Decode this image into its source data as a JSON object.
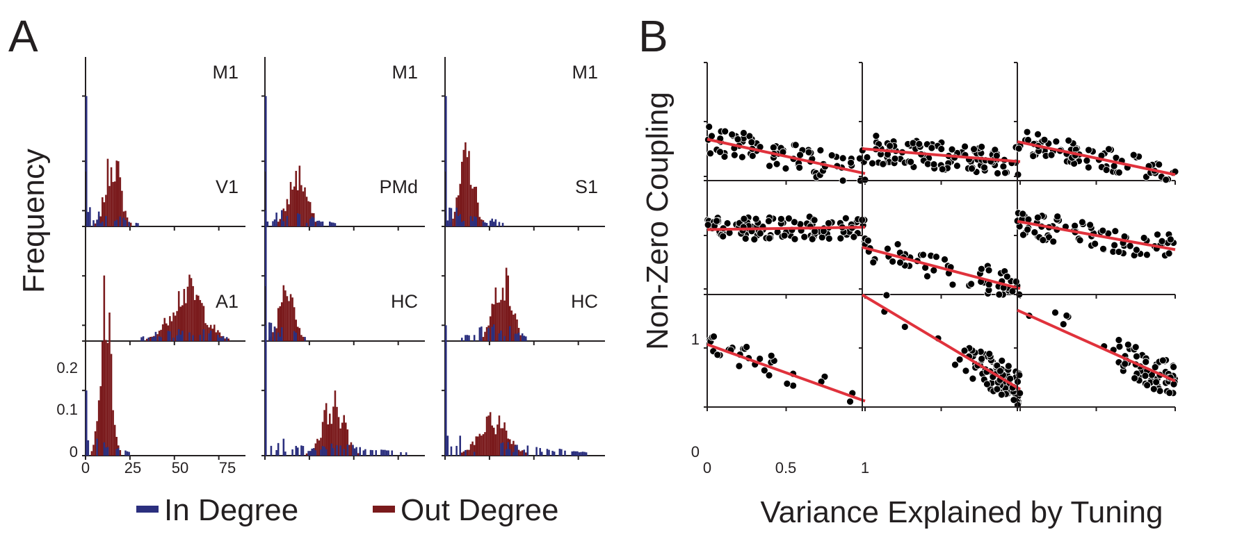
{
  "panel_labels": {
    "a": "A",
    "b": "B"
  },
  "colors": {
    "in_degree": "#2b2f7e",
    "out_degree": "#7a1a1c",
    "fit": "#e0323c",
    "points": "#000000"
  },
  "panel_a": {
    "ylabel": "Frequency",
    "xticks": [
      "0",
      "25",
      "50",
      "75"
    ],
    "yticks": [
      "0",
      "0.1",
      "0.2"
    ],
    "legend": {
      "in": "In Degree",
      "out": "Out Degree"
    }
  },
  "panel_b": {
    "ylabel": "Non-Zero Coupling",
    "xlabel": "Variance Explained by Tuning",
    "xticks": [
      "0",
      "0.5",
      "1"
    ],
    "yticks": [
      "0",
      "1"
    ]
  },
  "chart_data": [
    {
      "type": "bar",
      "name": "A",
      "xlim": [
        0,
        90
      ],
      "ylim": [
        0,
        0.26
      ],
      "panels": [
        {
          "title": "M1",
          "in_peak": 0,
          "in_spread": 30,
          "out_center": 15,
          "out_sd": 4,
          "out_max": 0.12
        },
        {
          "title": "M1",
          "in_peak": 0,
          "in_spread": 40,
          "out_center": 18,
          "out_sd": 5,
          "out_max": 0.09
        },
        {
          "title": "M1",
          "in_peak": 0,
          "in_spread": 35,
          "out_center": 12,
          "out_sd": 4,
          "out_max": 0.12
        },
        {
          "title": "V1",
          "in_peak": 55,
          "in_spread": 25,
          "out_center": 57,
          "out_sd": 9,
          "out_max": 0.09
        },
        {
          "title": "PMd",
          "in_peak": 0,
          "in_spread": 25,
          "out_center": 12,
          "out_sd": 4,
          "out_max": 0.11
        },
        {
          "title": "S1",
          "in_peak": 28,
          "in_spread": 20,
          "out_center": 32,
          "out_sd": 5,
          "out_max": 0.11
        },
        {
          "title": "A1",
          "in_peak": 0,
          "in_spread": 25,
          "out_center": 11,
          "out_sd": 3,
          "out_max": 0.26
        },
        {
          "title": "HC",
          "in_peak": 0,
          "in_spread": 80,
          "out_center": 38,
          "out_sd": 6,
          "out_max": 0.09
        },
        {
          "title": "HC",
          "in_peak": 0,
          "in_spread": 80,
          "out_center": 27,
          "out_sd": 8,
          "out_max": 0.06
        }
      ]
    },
    {
      "type": "scatter",
      "name": "B",
      "xlim": [
        0,
        1
      ],
      "ylim": [
        0,
        1
      ],
      "panels": [
        {
          "fit": [
            0.35,
            0.06
          ],
          "n": 80,
          "cluster": "uniform",
          "spread": 0.12
        },
        {
          "fit": [
            0.27,
            0.16
          ],
          "n": 110,
          "cluster": "uniform",
          "spread": 0.12
        },
        {
          "fit": [
            0.33,
            0.05
          ],
          "n": 80,
          "cluster": "left",
          "spread": 0.1
        },
        {
          "fit": [
            0.55,
            0.57
          ],
          "n": 110,
          "cluster": "uniform",
          "spread": 0.1
        },
        {
          "fit": [
            0.4,
            0.05
          ],
          "n": 60,
          "cluster": "uniform",
          "spread": 0.12
        },
        {
          "fit": [
            0.62,
            0.38
          ],
          "n": 80,
          "cluster": "left",
          "spread": 0.12
        },
        {
          "fit": [
            0.53,
            0.05
          ],
          "n": 30,
          "cluster": "left",
          "spread": 0.1
        },
        {
          "fit": [
            0.95,
            0.15
          ],
          "n": 90,
          "cluster": "right",
          "spread": 0.15
        },
        {
          "fit": [
            0.82,
            0.22
          ],
          "n": 70,
          "cluster": "right",
          "spread": 0.15
        }
      ]
    }
  ]
}
